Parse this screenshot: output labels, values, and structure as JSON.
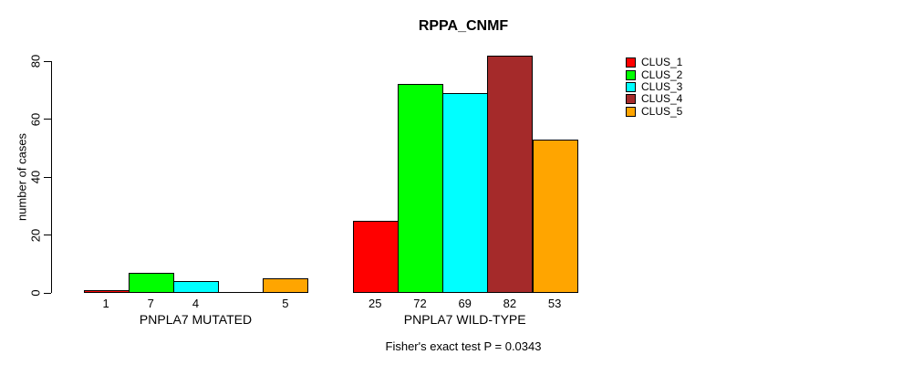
{
  "chart_data": {
    "type": "bar",
    "title": "RPPA_CNMF",
    "ylabel": "number of cases",
    "ylim": [
      0,
      80
    ],
    "yticks": [
      0,
      20,
      40,
      60,
      80
    ],
    "grid": false,
    "legend_position": "right-outside",
    "show_bar_value_labels": true,
    "groups": [
      "PNPLA7 MUTATED",
      "PNPLA7 WILD-TYPE"
    ],
    "series": [
      {
        "name": "CLUS_1",
        "color": "#ff0000",
        "values": [
          1,
          25
        ]
      },
      {
        "name": "CLUS_2",
        "color": "#00ff00",
        "values": [
          7,
          72
        ]
      },
      {
        "name": "CLUS_3",
        "color": "#00ffff",
        "values": [
          4,
          69
        ]
      },
      {
        "name": "CLUS_4",
        "color": "#a52a2a",
        "values": [
          0,
          82
        ]
      },
      {
        "name": "CLUS_5",
        "color": "#ffa500",
        "values": [
          5,
          53
        ]
      }
    ],
    "annotation": "Fisher's exact test P = 0.0343"
  }
}
